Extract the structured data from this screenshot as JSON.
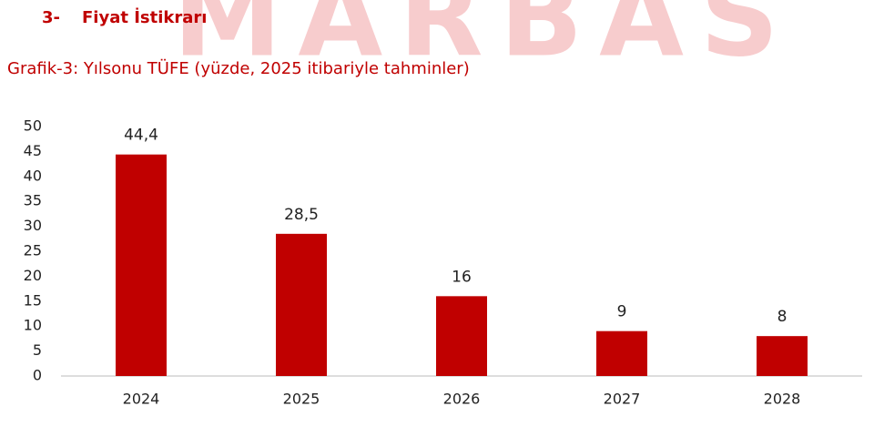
{
  "watermark": "MARBAS",
  "section_number": "3-",
  "section_title": "Fiyat İstikrarı",
  "chart_data": {
    "type": "bar",
    "title": "Grafik-3: Yılsonu TÜFE (yüzde, 2025 itibariyle tahminler)",
    "categories": [
      "2024",
      "2025",
      "2026",
      "2027",
      "2028"
    ],
    "values": [
      44.4,
      28.5,
      16,
      9,
      8
    ],
    "value_labels": [
      "44,4",
      "28,5",
      "16",
      "9",
      "8"
    ],
    "color": "#c00000",
    "ylim": [
      0,
      50
    ],
    "yticks": [
      0,
      5,
      10,
      15,
      20,
      25,
      30,
      35,
      40,
      45,
      50
    ],
    "grid": false
  }
}
